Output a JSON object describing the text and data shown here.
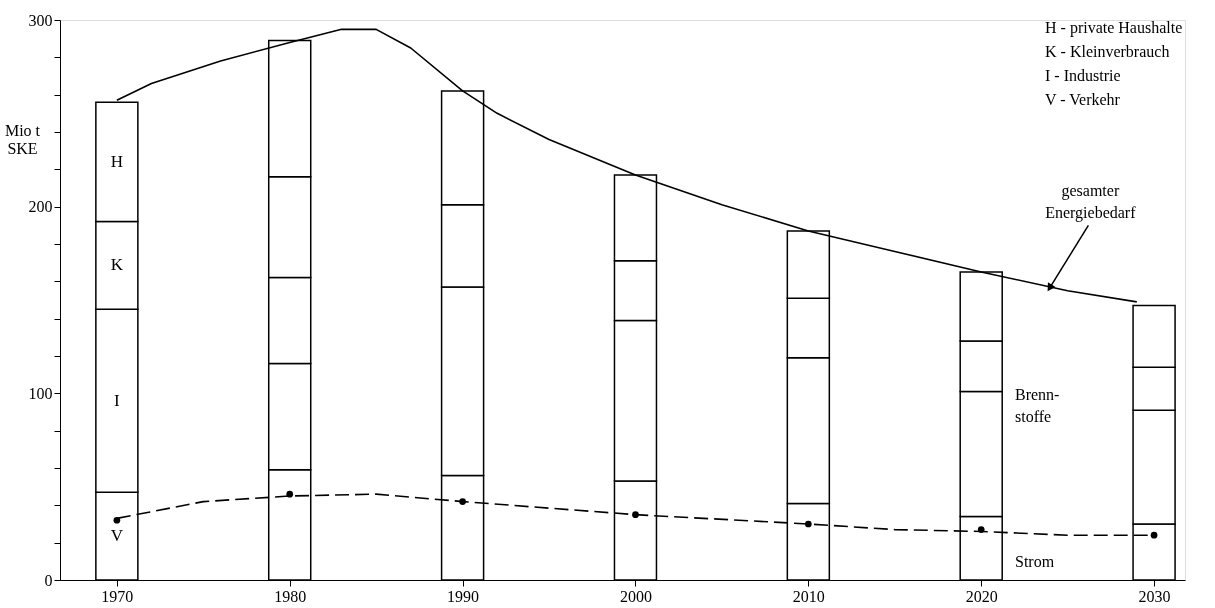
{
  "chart_data": {
    "type": "bar",
    "stacked": true,
    "grid": false,
    "x": [
      1970,
      1980,
      1990,
      2000,
      2010,
      2020,
      2030
    ],
    "xlim": [
      1967,
      2031.5
    ],
    "xticks": [
      1970,
      1980,
      1990,
      2000,
      2010,
      2020,
      2030
    ],
    "ylim": [
      0,
      300
    ],
    "yticks": [
      0,
      {
        "value": 20,
        "label": null
      },
      {
        "value": 40,
        "label": null
      },
      {
        "value": 60,
        "label": null
      },
      {
        "value": 80,
        "label": null
      },
      100,
      {
        "value": 120,
        "label": null
      },
      {
        "value": 140,
        "label": null
      },
      {
        "value": 160,
        "label": null
      },
      {
        "value": 180,
        "label": null
      },
      200,
      {
        "value": 220,
        "label": null
      },
      {
        "value": 240,
        "label": null
      },
      {
        "value": 260,
        "label": null
      },
      {
        "value": 280,
        "label": null
      },
      300
    ],
    "ylabel": "Mio t\nSKE",
    "series": [
      {
        "name": "V",
        "color": "#ffffff",
        "values": [
          47,
          59,
          56,
          53,
          41,
          34,
          30
        ]
      },
      {
        "name": "I",
        "color": "#ffffff",
        "values": [
          98,
          57,
          101,
          86,
          78,
          67,
          61
        ]
      },
      {
        "color": "#ffffff",
        "values": [
          null,
          46,
          null,
          null,
          null,
          null,
          null
        ]
      },
      {
        "name": "K",
        "color": "#ffffff",
        "values": [
          47,
          54,
          44,
          32,
          32,
          27,
          23
        ]
      },
      {
        "name": "H",
        "color": "#ffffff",
        "values": [
          64,
          73,
          61,
          46,
          36,
          37,
          33
        ]
      },
      {
        "type": "line",
        "color": "#000000",
        "line_style": "solid",
        "marker": "none",
        "x": [
          1970,
          1972,
          1976,
          1980,
          1983,
          1985,
          1987,
          1990,
          1992,
          1995,
          2000,
          2005,
          2010,
          2015,
          2020,
          2025,
          2029
        ],
        "values": [
          257,
          266,
          278,
          288,
          295,
          295,
          285,
          262,
          250,
          236,
          217,
          201,
          187,
          176,
          165,
          155,
          149
        ]
      },
      {
        "type": "line",
        "color": "#000000",
        "line_style": "dashed",
        "marker": "none",
        "x": [
          1970,
          1975,
          1980,
          1985,
          1990,
          2000,
          2010,
          2015,
          2020,
          2025,
          2030
        ],
        "values": [
          33,
          42,
          45,
          46,
          42,
          35,
          30,
          27,
          26,
          24,
          24
        ]
      },
      {
        "type": "scatter",
        "color": "#000000",
        "marker": "circle",
        "x": [
          1970,
          1980,
          1990,
          2000,
          2010,
          2020,
          2030
        ],
        "values": [
          32,
          46,
          42,
          35,
          30,
          27,
          24
        ]
      }
    ],
    "annotations": [
      "H - private Haushalte",
      "K - Kleinverbrauch",
      " I - Industrie",
      "V - Verkehr",
      {
        "text": "gesamter\nEnergiebedarf",
        "x": 2024,
        "y": 157
      },
      "Brenn-\nstoffe",
      "Strom"
    ]
  }
}
